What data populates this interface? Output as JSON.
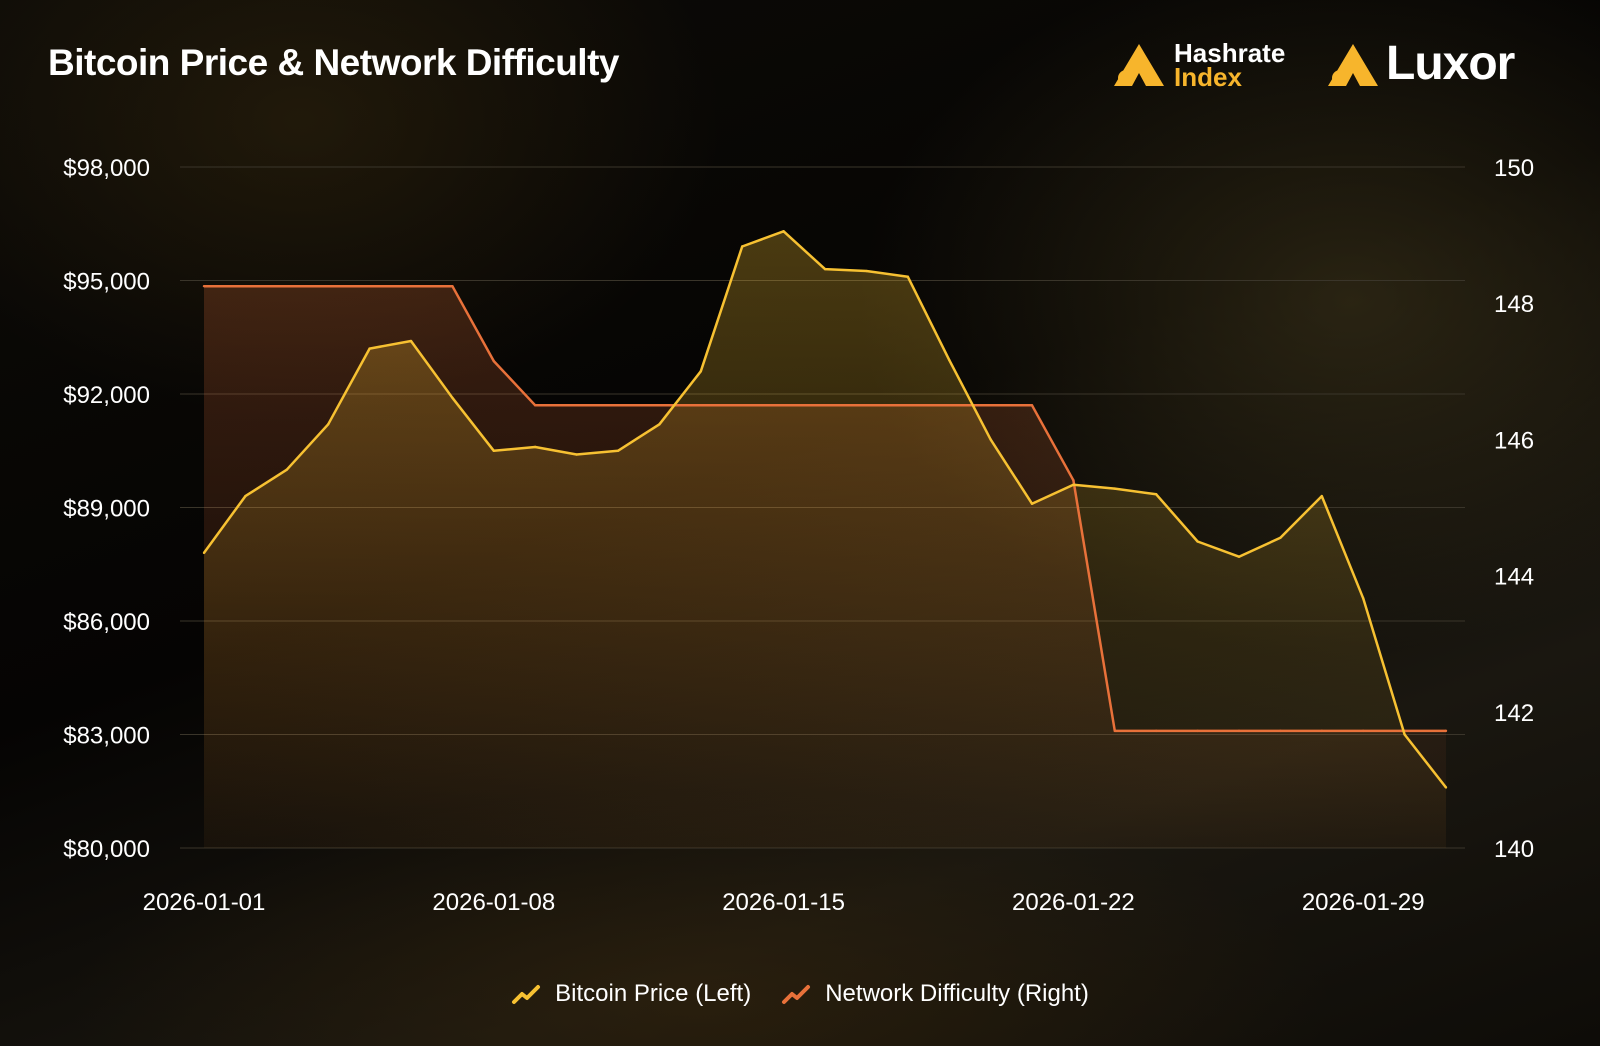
{
  "title": "Bitcoin Price & Network Difficulty",
  "logos": {
    "hashrate_line1": "Hashrate",
    "hashrate_line2": "Index",
    "luxor": "Luxor"
  },
  "colors": {
    "price": "#f7c132",
    "difficulty": "#e8713a",
    "grid": "#3a352a",
    "text": "#ffffff"
  },
  "chart_data": {
    "type": "line",
    "x": [
      "2026-01-01",
      "2026-01-02",
      "2026-01-03",
      "2026-01-04",
      "2026-01-05",
      "2026-01-06",
      "2026-01-07",
      "2026-01-08",
      "2026-01-09",
      "2026-01-10",
      "2026-01-11",
      "2026-01-12",
      "2026-01-13",
      "2026-01-14",
      "2026-01-15",
      "2026-01-16",
      "2026-01-17",
      "2026-01-18",
      "2026-01-19",
      "2026-01-20",
      "2026-01-21",
      "2026-01-22",
      "2026-01-23",
      "2026-01-24",
      "2026-01-25",
      "2026-01-26",
      "2026-01-27",
      "2026-01-28",
      "2026-01-29",
      "2026-01-30",
      "2026-01-31"
    ],
    "x_ticks": [
      "2026-01-01",
      "2026-01-08",
      "2026-01-15",
      "2026-01-22",
      "2026-01-29"
    ],
    "y_left": {
      "lim": [
        80000,
        98000
      ],
      "ticks": [
        80000,
        83000,
        86000,
        89000,
        92000,
        95000,
        98000
      ],
      "tick_labels": [
        "$80,000",
        "$83,000",
        "$86,000",
        "$89,000",
        "$92,000",
        "$95,000",
        "$98,000"
      ]
    },
    "y_right": {
      "lim": [
        140,
        150
      ],
      "ticks": [
        140,
        142,
        144,
        146,
        148,
        150
      ],
      "tick_labels": [
        "140",
        "142",
        "144",
        "146",
        "148",
        "150"
      ]
    },
    "grid": true,
    "legend_position": "bottom-center",
    "series": [
      {
        "name": "Bitcoin Price (Left)",
        "axis": "left",
        "values": [
          87800,
          89300,
          90000,
          91200,
          93200,
          93400,
          91900,
          90500,
          90600,
          90400,
          90500,
          91200,
          92600,
          95900,
          96300,
          95300,
          95250,
          95100,
          92900,
          90800,
          89100,
          89600,
          89500,
          89350,
          88100,
          87700,
          88200,
          89300,
          86600,
          83000,
          81600
        ]
      },
      {
        "name": "Network Difficulty (Right)",
        "axis": "right",
        "values": [
          148.25,
          148.25,
          148.25,
          148.25,
          148.25,
          148.25,
          148.25,
          147.15,
          146.5,
          146.5,
          146.5,
          146.5,
          146.5,
          146.5,
          146.5,
          146.5,
          146.5,
          146.5,
          146.5,
          146.5,
          146.5,
          145.4,
          141.72,
          141.72,
          141.72,
          141.72,
          141.72,
          141.72,
          141.72,
          141.72,
          141.72
        ]
      }
    ]
  }
}
